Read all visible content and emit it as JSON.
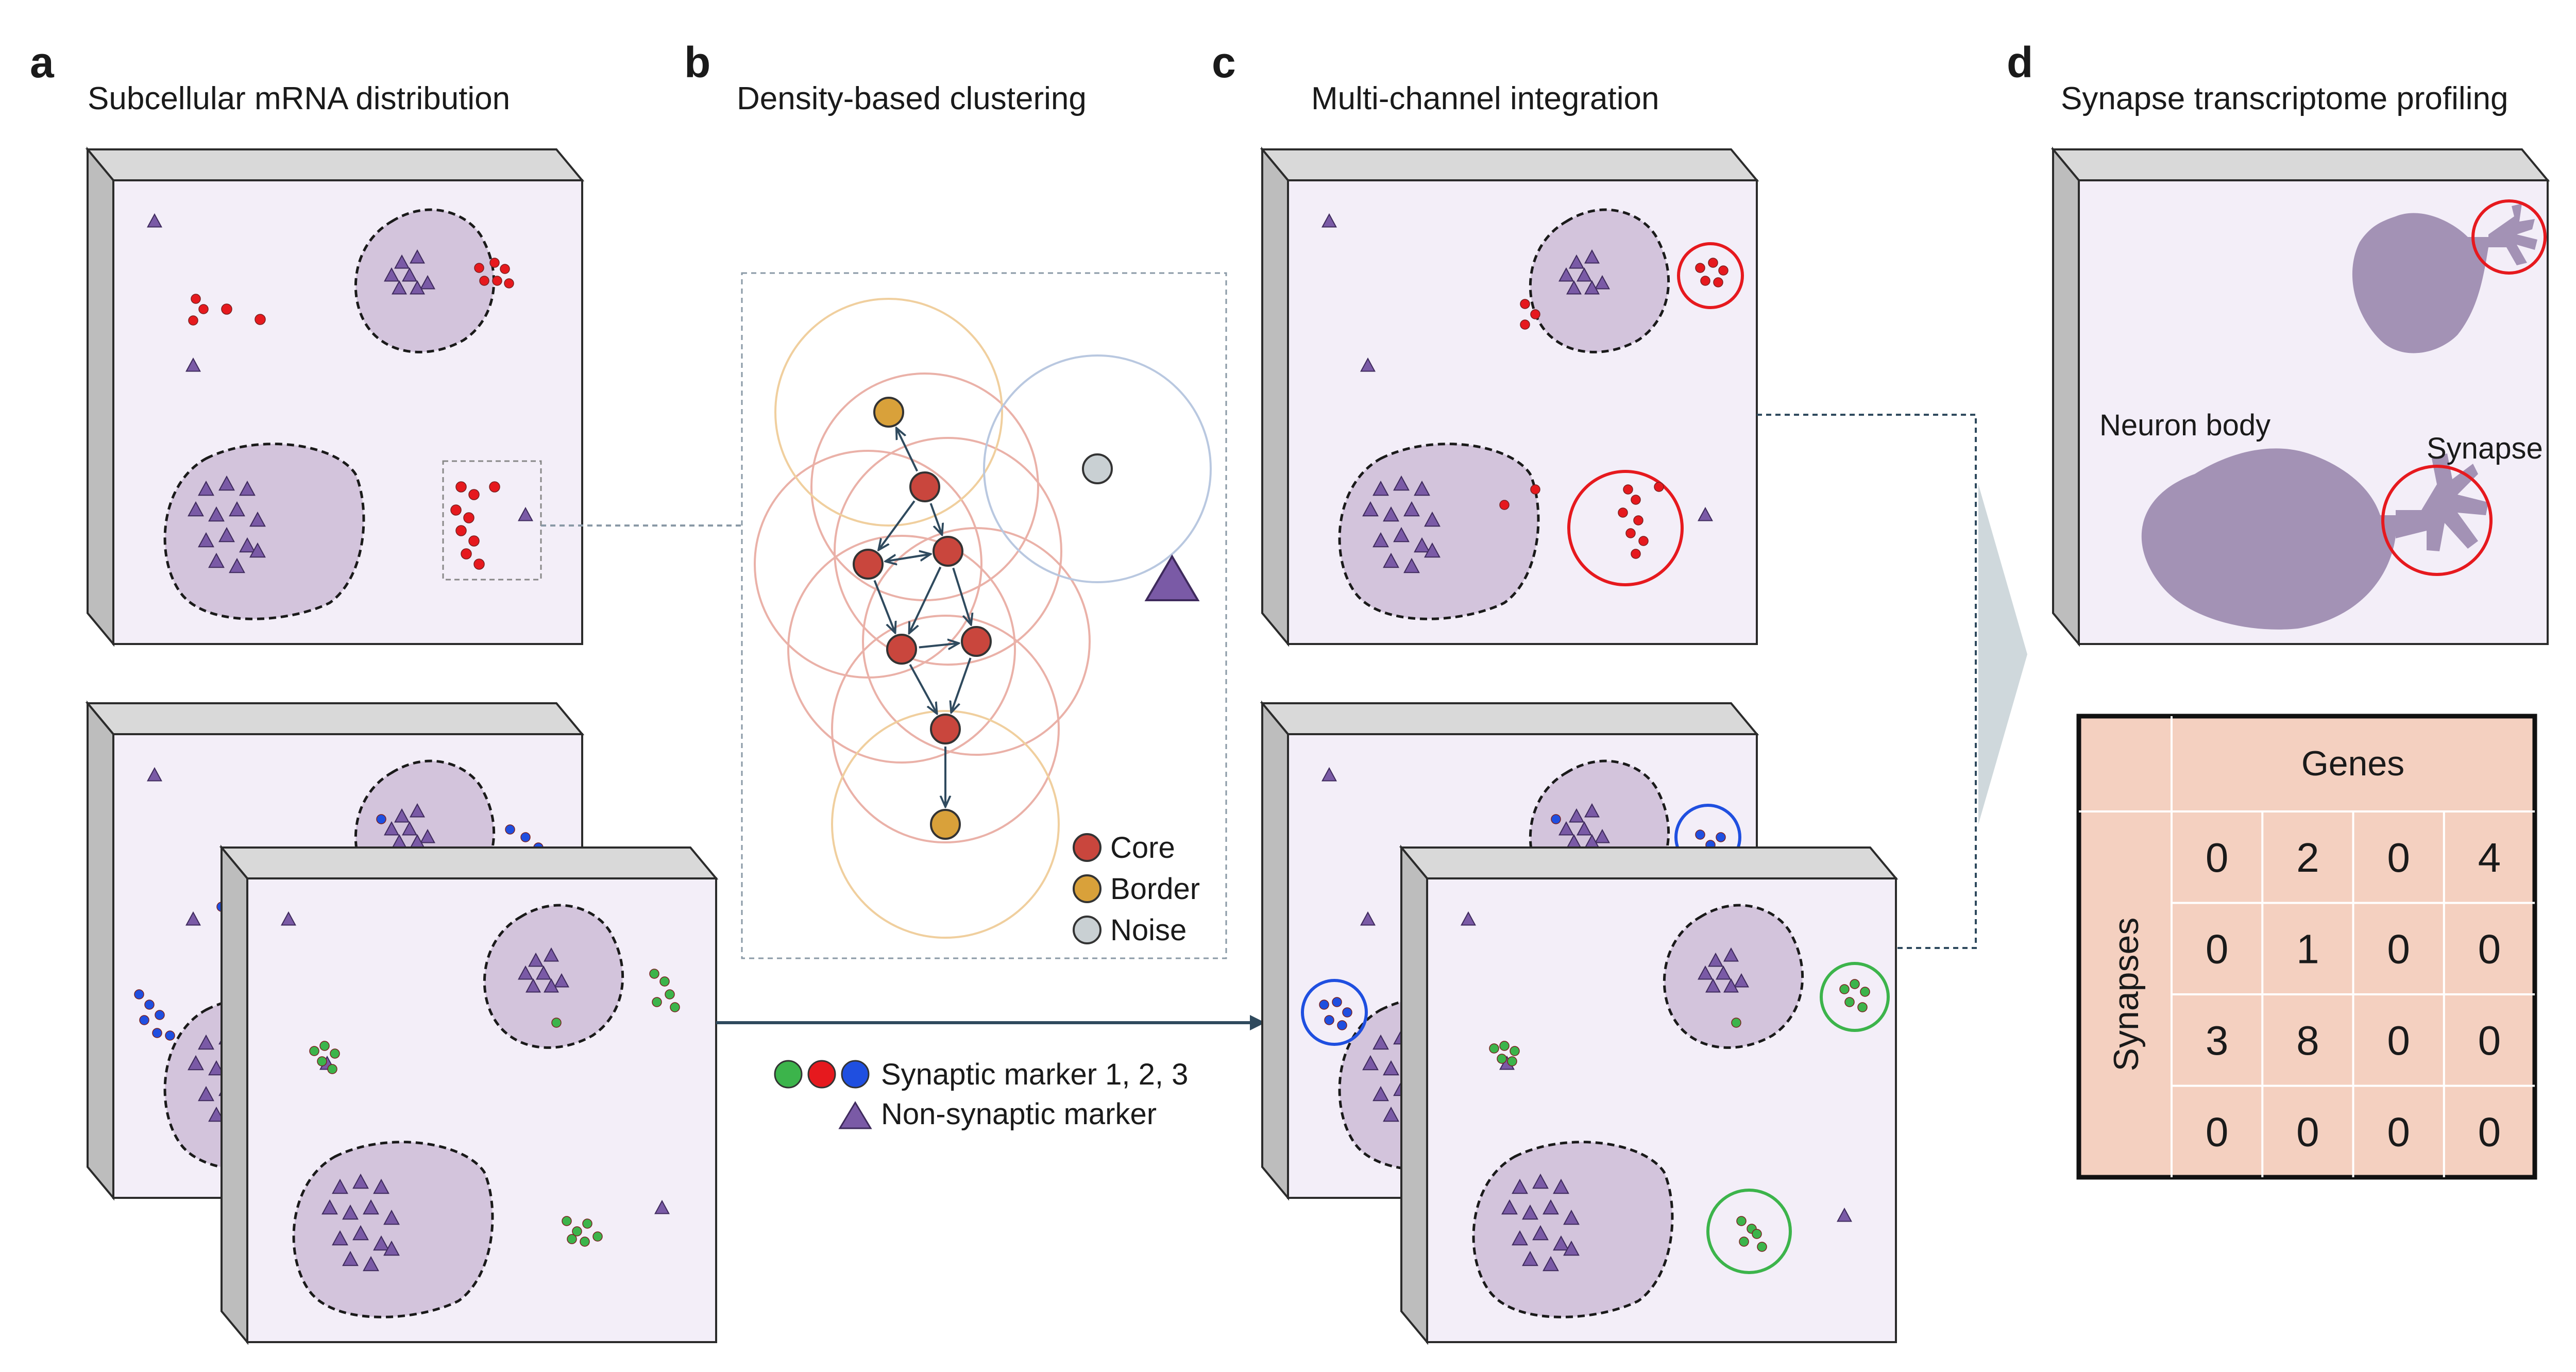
{
  "panels": {
    "a": {
      "label": "a",
      "title": "Subcellular mRNA distribution"
    },
    "b": {
      "label": "b",
      "title": "Density-based clustering"
    },
    "c": {
      "label": "c",
      "title": "Multi-channel integration"
    },
    "d": {
      "label": "d",
      "title": "Synapse transcriptome profiling"
    }
  },
  "clustering_legend": [
    {
      "label": "Core",
      "color": "#c9463d"
    },
    {
      "label": "Border",
      "color": "#d9a13a"
    },
    {
      "label": "Noise",
      "color": "#c9d0d3"
    }
  ],
  "marker_legend": {
    "synaptic": {
      "label": "Synaptic marker 1, 2, 3",
      "colors": [
        "#3cb44b",
        "#e6191e",
        "#1f4fe0"
      ]
    },
    "nonsynaptic": {
      "label": "Non-synaptic marker",
      "color": "#7a5aa6"
    }
  },
  "neuron_labels": {
    "body": "Neuron body",
    "synapse": "Synapse"
  },
  "matrix": {
    "col_header": "Genes",
    "row_header": "Synapses",
    "rows": [
      [
        0,
        2,
        0,
        4
      ],
      [
        0,
        1,
        0,
        0
      ],
      [
        3,
        8,
        0,
        0
      ],
      [
        0,
        0,
        0,
        0
      ]
    ]
  },
  "colors": {
    "cell_bg": "#f3eef8",
    "blob": "#d3c4dc",
    "red_marker": "#e6191e",
    "green_marker": "#3cb44b",
    "blue_marker": "#1f4fe0",
    "purple_marker": "#7a5aa6",
    "arrow": "#2f4a5e",
    "neuron": "#a392b5",
    "matrix_bg": "#f4d0c0"
  }
}
